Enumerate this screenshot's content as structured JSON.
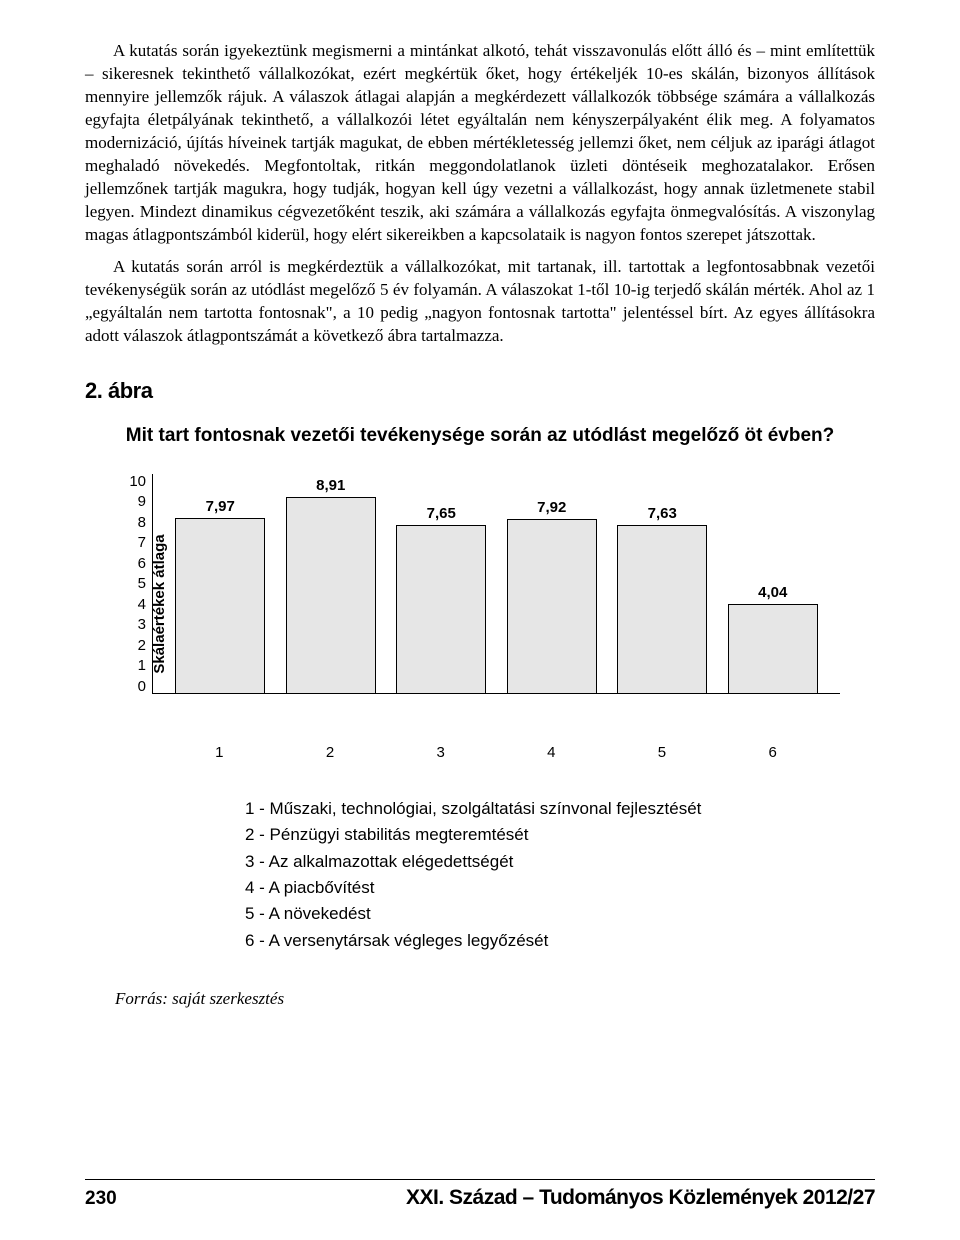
{
  "paragraphs": {
    "p1": "A kutatás során igyekeztünk megismerni a mintánkat alkotó, tehát visszavonulás előtt álló és – mint említettük – sikeresnek tekinthető vállalkozókat, ezért megkértük őket, hogy értékeljék 10-es skálán, bizonyos állítások mennyire jellemzők rájuk. A válaszok átlagai alapján a megkérdezett vállalkozók többsége számára a vállalkozás egyfajta életpályának tekinthető, a vállalkozói létet egyáltalán nem kényszerpályaként élik meg. A folyamatos modernizáció, újítás híveinek tartják magukat, de ebben mértékletesség jellemzi őket, nem céljuk az iparági átlagot meghaladó növekedés. Megfontoltak, ritkán meggondolatlanok üzleti döntéseik meghozatalakor. Erősen jellemzőnek tartják magukra, hogy tudják, hogyan kell úgy vezetni a vállalkozást, hogy annak üzletmenete stabil legyen. Mindezt dinamikus cégvezetőként teszik, aki számára a vállalkozás egyfajta önmegvalósítás. A viszonylag magas átlagpontszámból kiderül, hogy elért sikereikben a kapcsolataik is nagyon fontos szerepet játszottak.",
    "p2": "A kutatás során arról is megkérdeztük a vállalkozókat, mit tartanak, ill. tartottak a legfontosabbnak vezetői tevékenységük során az utódlást megelőző 5 év folyamán. A válaszokat 1-től 10-ig terjedő skálán mérték. Ahol az 1 „egyáltalán nem tartotta fontosnak\", a 10 pedig „nagyon fontosnak tartotta\" jelentéssel bírt. Az egyes állításokra adott válaszok átlagpontszámát a következő ábra tartalmazza."
  },
  "figure_label": "2. ábra",
  "chart": {
    "type": "bar",
    "title": "Mit tart fontosnak vezetői tevékenysége során az utódlást megelőző öt évben?",
    "y_axis_label": "Skálaértékek átlaga",
    "y_ticks": [
      "10",
      "9",
      "8",
      "7",
      "6",
      "5",
      "4",
      "3",
      "2",
      "1",
      "0"
    ],
    "y_max": 10,
    "categories": [
      "1",
      "2",
      "3",
      "4",
      "5",
      "6"
    ],
    "values": [
      7.97,
      8.91,
      7.65,
      7.92,
      7.63,
      4.04
    ],
    "value_labels": [
      "7,97",
      "8,91",
      "7,65",
      "7,92",
      "7,63",
      "4,04"
    ],
    "bar_color": "#e6e6e6",
    "bar_border": "#000000",
    "background": "#ffffff"
  },
  "legend_items": [
    "1 - Műszaki, technológiai, szolgáltatási színvonal fejlesztését",
    "2 - Pénzügyi stabilitás megteremtését",
    "3 - Az alkalmazottak elégedettségét",
    "4 - A piacbővítést",
    "5 - A növekedést",
    "6 - A versenytársak végleges legyőzését"
  ],
  "source": "Forrás: saját szerkesztés",
  "footer": {
    "page": "230",
    "journal": "XXI. Század – Tudományos Közlemények 2012/27"
  }
}
